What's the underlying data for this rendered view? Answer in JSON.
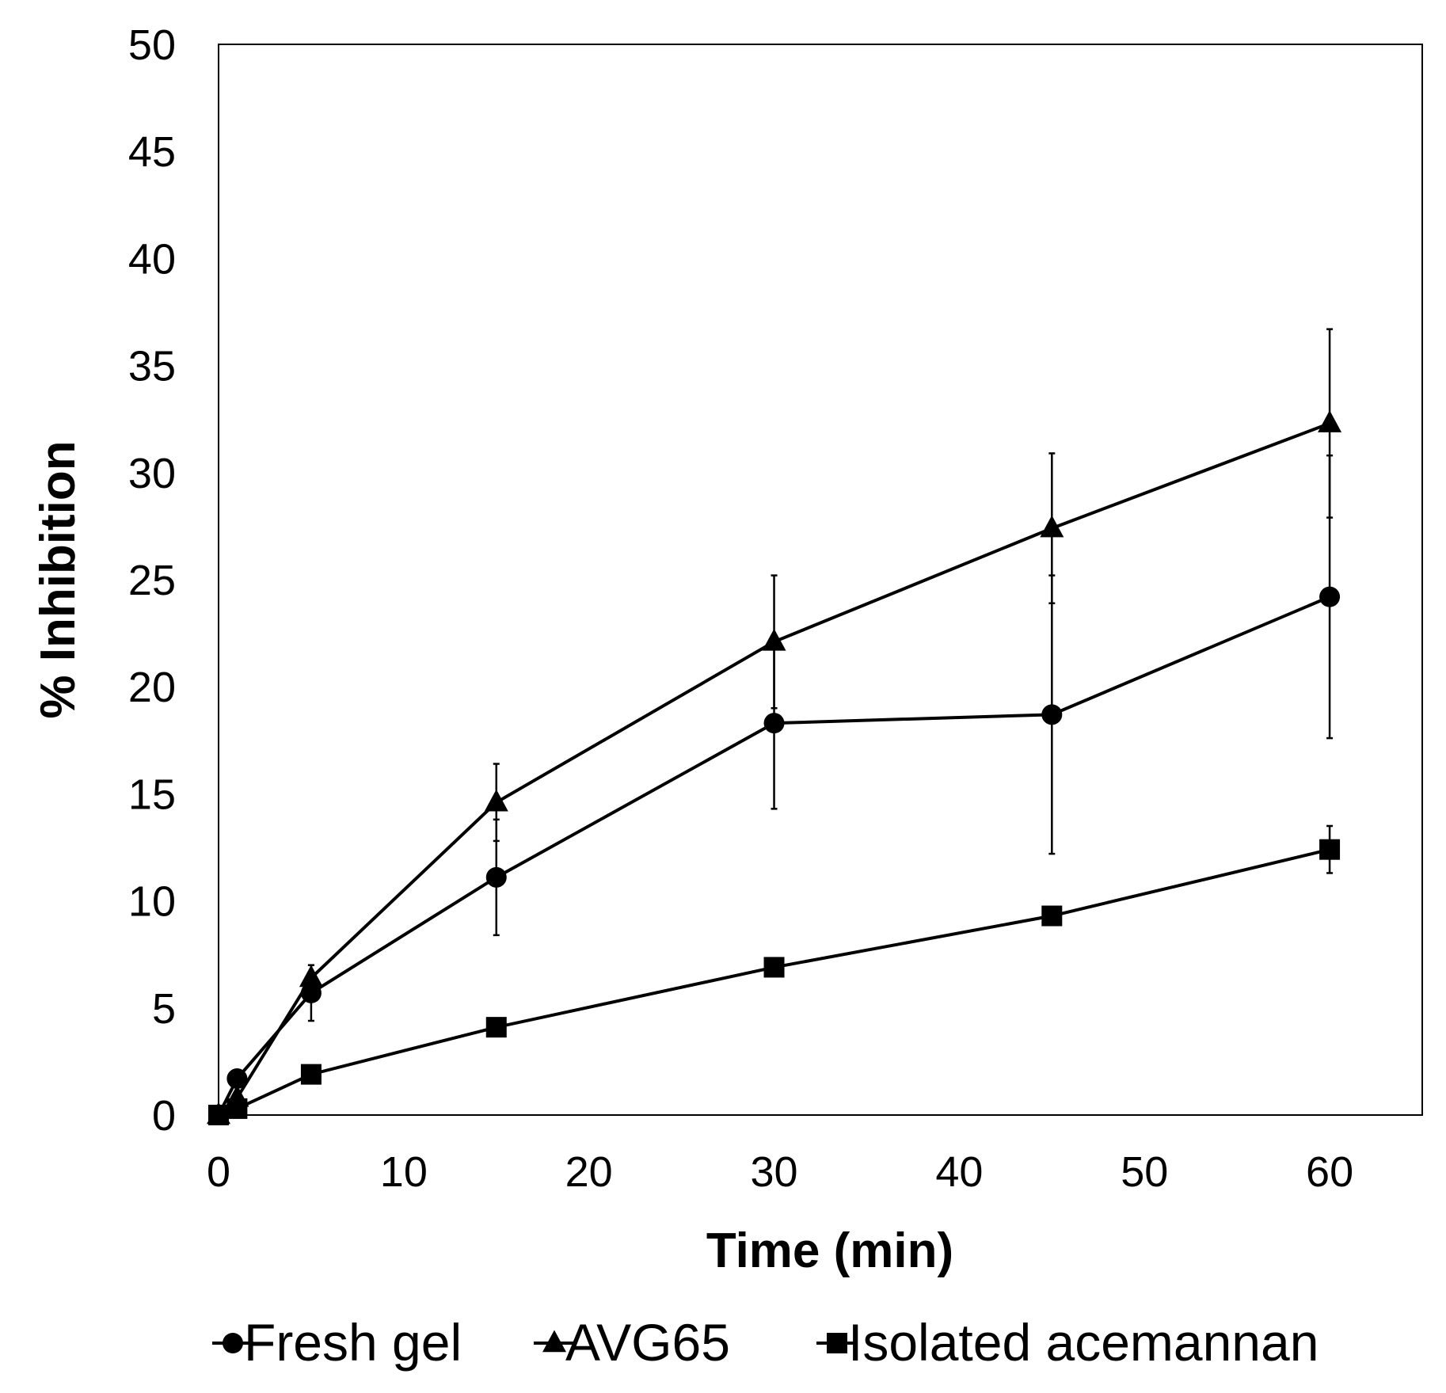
{
  "chart_data": {
    "type": "line",
    "title": "",
    "xlabel": "Time (min)",
    "ylabel": "% Inhibition",
    "xlim": [
      0,
      65
    ],
    "ylim": [
      0,
      50
    ],
    "xticks": [
      0,
      10,
      20,
      30,
      40,
      50,
      60
    ],
    "yticks": [
      0,
      5,
      10,
      15,
      20,
      25,
      30,
      35,
      40,
      45,
      50
    ],
    "grid": false,
    "legend_position": "bottom",
    "series": [
      {
        "name": "Fresh gel",
        "marker": "circle",
        "x": [
          0,
          1,
          5,
          15,
          30,
          45,
          60
        ],
        "y": [
          0,
          1.7,
          5.7,
          11.1,
          18.3,
          18.7,
          24.2
        ],
        "err": [
          0,
          0,
          1.3,
          2.7,
          4.0,
          6.5,
          6.6
        ]
      },
      {
        "name": "AVG65",
        "marker": "triangle",
        "x": [
          0,
          1,
          5,
          15,
          30,
          45,
          60
        ],
        "y": [
          0,
          0.8,
          6.4,
          14.6,
          22.1,
          27.4,
          32.3
        ],
        "err": [
          0,
          0,
          0.6,
          1.8,
          3.1,
          3.5,
          4.4
        ]
      },
      {
        "name": "Isolated acemannan",
        "marker": "square",
        "x": [
          0,
          1,
          5,
          15,
          30,
          45,
          60
        ],
        "y": [
          0,
          0.3,
          1.9,
          4.1,
          6.9,
          9.3,
          12.4
        ],
        "err": [
          0,
          0,
          0,
          0,
          0,
          0,
          1.1
        ]
      }
    ]
  }
}
